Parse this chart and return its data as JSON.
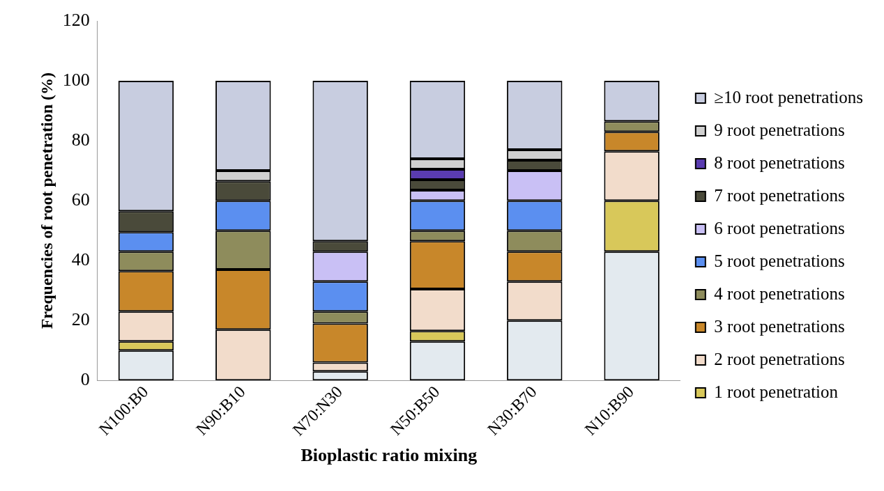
{
  "chart_data": {
    "type": "bar",
    "stacked": true,
    "xlabel": "Bioplastic ratio mixing",
    "ylabel": "Frequencies of root penetration (%)",
    "categories": [
      "N100:B0",
      "N90:B10",
      "N70:N30",
      "N50:B50",
      "N30:B70",
      "N10:B90"
    ],
    "ylim": [
      0,
      120
    ],
    "yticks": [
      0,
      20,
      40,
      60,
      80,
      100,
      120
    ],
    "grid": false,
    "legend": "right",
    "series": [
      {
        "color": "#e3eaef",
        "values": [
          10,
          0,
          3,
          13,
          20,
          43
        ]
      },
      {
        "name": "1 root penetration",
        "color": "#d8c85a",
        "values": [
          3,
          0,
          0,
          3.5,
          0,
          17
        ]
      },
      {
        "name": "2 root penetrations",
        "color": "#f2dccb",
        "values": [
          10,
          17,
          3,
          14,
          13,
          16.5
        ]
      },
      {
        "name": "3 root penetrations",
        "color": "#c8872a",
        "values": [
          13.5,
          20,
          13,
          16,
          10,
          6.5
        ]
      },
      {
        "name": "4 root penetrations",
        "color": "#8e8c5c",
        "values": [
          6.5,
          13,
          4,
          3.5,
          7,
          3.5
        ]
      },
      {
        "name": "5 root penetrations",
        "color": "#5b8ff0",
        "values": [
          6.5,
          10,
          10,
          10,
          10,
          0
        ]
      },
      {
        "name": "6 root penetrations",
        "color": "#c9c0f5",
        "values": [
          0,
          0,
          10,
          3.5,
          10,
          0
        ]
      },
      {
        "name": "7 root penetrations",
        "color": "#4a4a3a",
        "values": [
          7,
          6.5,
          3.5,
          3.5,
          3.5,
          0
        ]
      },
      {
        "name": "8 root penetrations",
        "color": "#5a3cb0",
        "values": [
          0,
          0,
          0,
          3.5,
          0,
          0
        ]
      },
      {
        "name": "9 root penetrations",
        "color": "#d0d0d0",
        "values": [
          0,
          3.5,
          0,
          3.5,
          3.5,
          0
        ]
      },
      {
        "name": "≥10 root penetrations",
        "color": "#c8cde0",
        "values": [
          43.5,
          30,
          53.5,
          26,
          23,
          13.5
        ]
      }
    ]
  }
}
